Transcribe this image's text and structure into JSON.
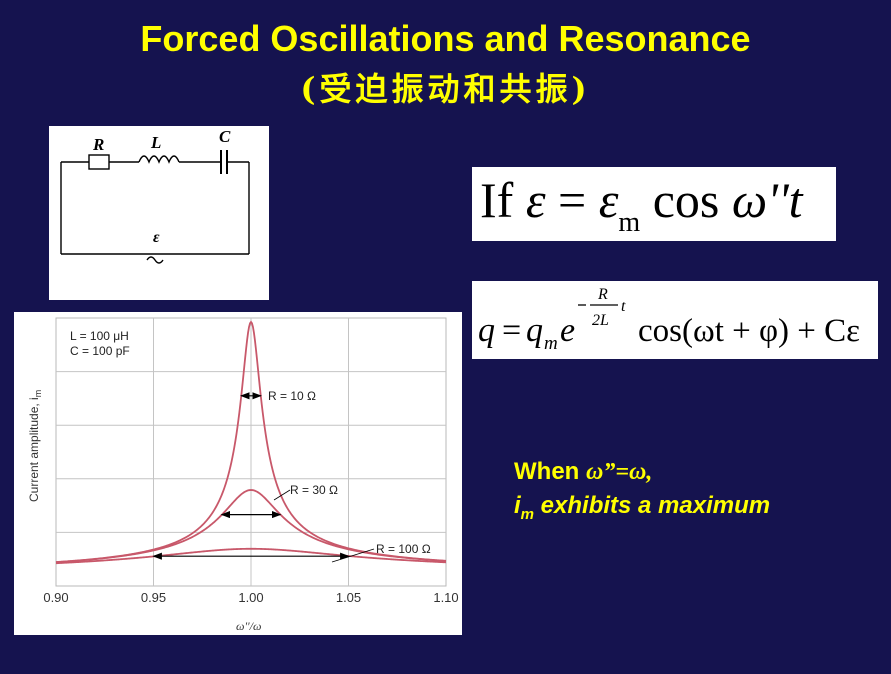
{
  "title": {
    "main": "Forced Oscillations and Resonance",
    "sub": "(受迫振动和共振)"
  },
  "circuit": {
    "label_r": "R",
    "label_l": "L",
    "label_c": "C",
    "label_emf": "ε"
  },
  "equation1": {
    "if": "If",
    "eps": "ε",
    "eq": " = ",
    "eps_m": "ε",
    "sub_m": "m",
    "cos": " cos ",
    "omega": "ω''",
    "t": "t"
  },
  "equation2": {
    "q": "q",
    "eq": "=",
    "q_m": "q",
    "sub_m": "m",
    "e": "e",
    "exp_num": "R",
    "exp_den": "2L",
    "exp_t": "t",
    "cos_part": "cos(ωt + φ) + Cε"
  },
  "note": {
    "line1_prefix": "When ",
    "line1_omega": "ω”=ω,",
    "line2_im": "i",
    "line2_sub": "m",
    "line2_rest": " exhibits a maximum"
  },
  "chart_data": {
    "type": "line",
    "ylabel": "Current amplitude, i",
    "ylabel_sub": "m",
    "xlabel": "ω''/ω",
    "xlim": [
      0.9,
      1.1
    ],
    "xticks": [
      "0.90",
      "0.95",
      "1.00",
      "1.05",
      "1.10"
    ],
    "params": [
      "L = 100 μH",
      "C = 100 pF"
    ],
    "series": [
      {
        "name": "R = 10 Ω",
        "R": 10
      },
      {
        "name": "R = 30 Ω",
        "R": 30
      },
      {
        "name": "R = 100 Ω",
        "R": 100
      }
    ],
    "line_color": "#c8586a",
    "grid": true
  }
}
